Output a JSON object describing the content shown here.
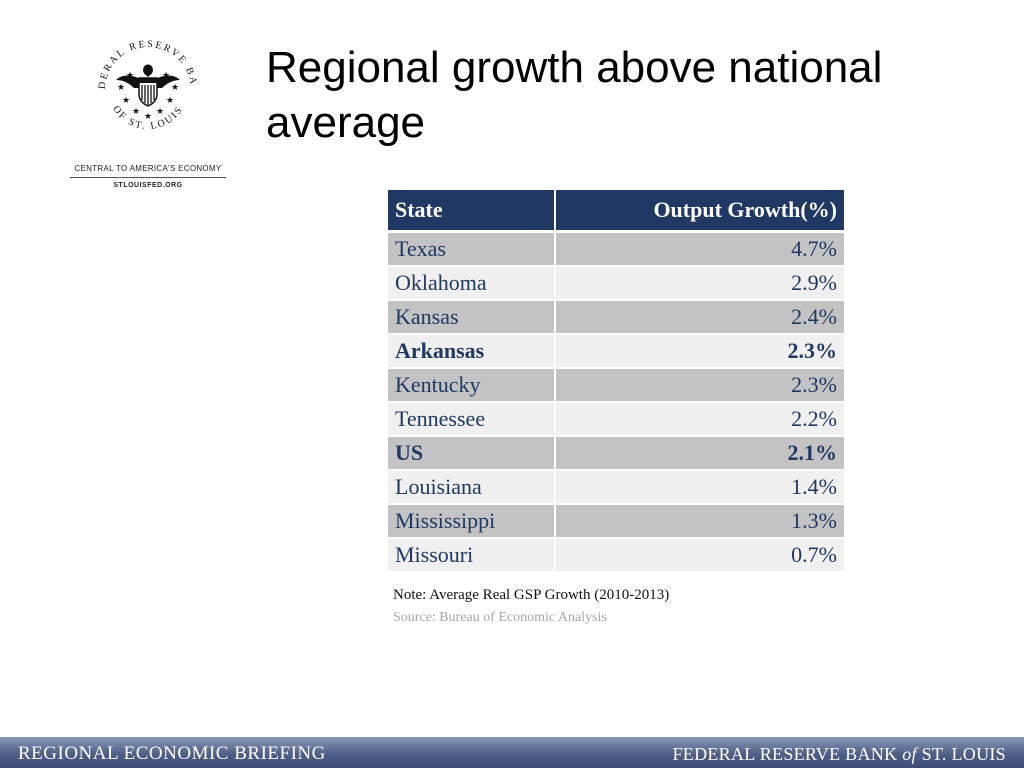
{
  "logo": {
    "seal_top_text": "FEDERAL RESERVE BANK",
    "seal_bottom_text": "OF ST. LOUIS",
    "tagline": "CENTRAL TO AMERICA'S ECONOMY",
    "url": "STLOUISFED.ORG"
  },
  "title": "Regional growth above national average",
  "table": {
    "headers": [
      "State",
      "Output Growth(%)"
    ],
    "rows": [
      {
        "state": "Texas",
        "growth": "4.7%"
      },
      {
        "state": "Oklahoma",
        "growth": "2.9%"
      },
      {
        "state": "Kansas",
        "growth": "2.4%"
      },
      {
        "state": "Arkansas",
        "growth": "2.3%"
      },
      {
        "state": "Kentucky",
        "growth": "2.3%"
      },
      {
        "state": "Tennessee",
        "growth": "2.2%"
      },
      {
        "state": "US",
        "growth": "2.1%"
      },
      {
        "state": "Louisiana",
        "growth": "1.4%"
      },
      {
        "state": "Mississippi",
        "growth": "1.3%"
      },
      {
        "state": "Missouri",
        "growth": "0.7%"
      }
    ],
    "note": "Note: Average Real GSP Growth (2010-2013)",
    "source": "Source: Bureau of Economic Analysis"
  },
  "footer": {
    "left": "REGIONAL ECONOMIC BRIEFING",
    "right_pre": "FEDERAL RESERVE BANK",
    "right_of": "of",
    "right_post": "ST. LOUIS"
  },
  "colors": {
    "header_navy": "#1f3864",
    "row_shade": "#c3c3c3",
    "row_light": "#f0f0f0",
    "footer_blue": "#4f5f88"
  },
  "icons": [
    "eagle-shield-seal-icon",
    "star-icon"
  ]
}
